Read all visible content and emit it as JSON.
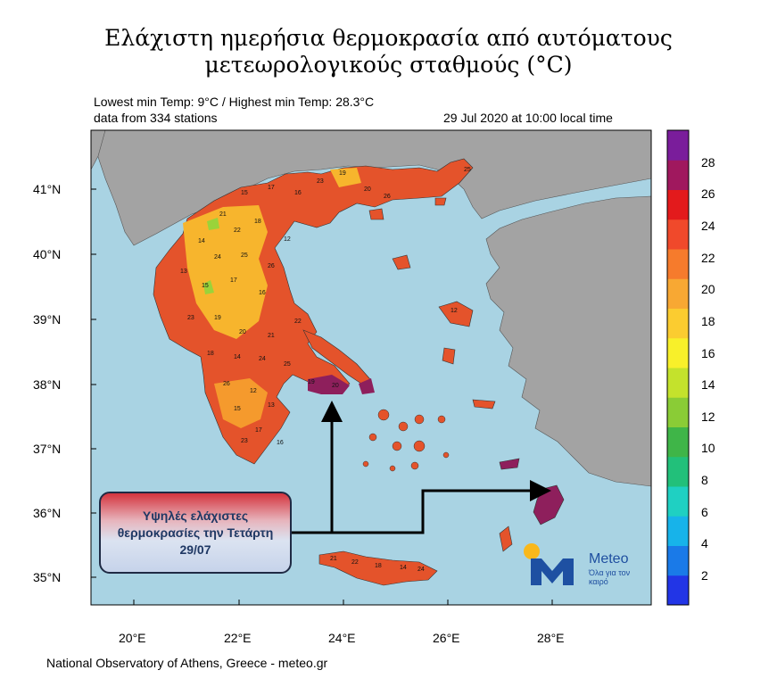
{
  "title_line1": "Ελάχιστη ημερήσια θερμοκρασία από αυτόματους",
  "title_line2": "μετεωρολογικούς σταθμούς (°C)",
  "info": {
    "minmax": "Lowest min Temp: 9°C / Highest min Temp: 28.3°C",
    "stations": "data from 334 stations",
    "datetime": "29 Jul 2020 at 10:00 local time"
  },
  "map": {
    "lon_ticks": [
      "20°E",
      "22°E",
      "24°E",
      "26°E",
      "28°E"
    ],
    "lat_ticks": [
      "41°N",
      "40°N",
      "39°N",
      "38°N",
      "37°N",
      "36°N",
      "35°N"
    ],
    "colors": {
      "sea": "#a9d3e3",
      "land_foreign": "#a3a3a3",
      "warm": "#e4532b",
      "hot": "#8e1f5c"
    }
  },
  "colorbar": {
    "labels": [
      "28",
      "26",
      "24",
      "22",
      "20",
      "18",
      "16",
      "14",
      "12",
      "10",
      "8",
      "6",
      "4",
      "2"
    ],
    "colors": [
      "#7a1d9b",
      "#a0185e",
      "#e31a1c",
      "#f0492b",
      "#f67b2c",
      "#f8a833",
      "#fbcc30",
      "#f8f02a",
      "#c4e22c",
      "#8acc36",
      "#3fb548",
      "#22c07a",
      "#1fd0c2",
      "#17b3ea",
      "#1a7ae8",
      "#2235e6"
    ]
  },
  "station_values": [
    "15",
    "17",
    "16",
    "23",
    "19",
    "20",
    "21",
    "22",
    "18",
    "14",
    "24",
    "25",
    "26",
    "12",
    "13"
  ],
  "callout": "Υψηλές ελάχιστες θερμοκρασίες την Τετάρτη 29/07",
  "logo": {
    "name": "Meteo",
    "tagline": "Όλα για τον καιρό"
  },
  "footer": "National Observatory of Athens, Greece - meteo.gr"
}
